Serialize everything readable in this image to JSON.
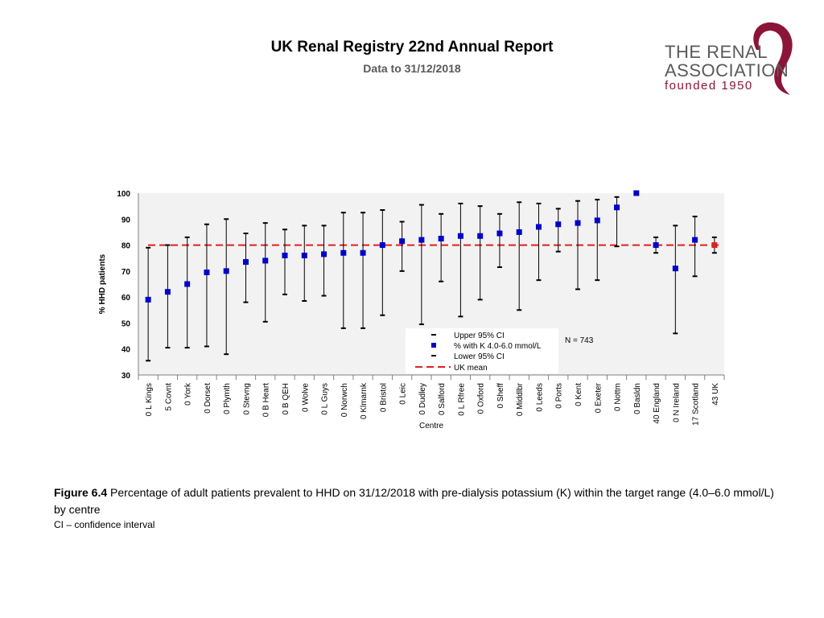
{
  "header": {
    "title": "UK Renal Registry 22nd Annual Report",
    "subtitle": "Data to 31/12/2018"
  },
  "logo": {
    "line1": "THE RENAL",
    "line2": "ASSOCIATION",
    "line3": "founded 1950",
    "color": "#8b1538"
  },
  "chart_data": {
    "type": "scatter",
    "xlabel": "Centre",
    "ylabel": "% HHD patients",
    "ylim": [
      30,
      100
    ],
    "yticks": [
      30,
      40,
      50,
      60,
      70,
      80,
      90,
      100
    ],
    "uk_mean": 80,
    "n_label": "N = 743",
    "legend": {
      "upper": "Upper 95% CI",
      "point": "% with K 4.0-6.0 mmol/L",
      "lower": "Lower 95% CI",
      "mean": "UK mean"
    },
    "colors": {
      "point": "#0000cc",
      "uk_point": "#e02020",
      "mean": "#e02020",
      "bg": "#f2f2f2"
    },
    "categories": [
      "0 L Kings",
      "5 Covnt",
      "0 York",
      "0 Dorset",
      "0 Plymth",
      "0 Stevng",
      "0 B Heart",
      "0 B QEH",
      "0 Wolve",
      "0 L Guys",
      "0 Norwch",
      "0 Klmarnk",
      "0 Bristol",
      "0 Leic",
      "0 Dudley",
      "0 Salford",
      "0 L Rfree",
      "0 Oxford",
      "0 Sheff",
      "0 Middlbr",
      "0 Leeds",
      "0 Ports",
      "0 Kent",
      "0 Exeter",
      "0 Nottm",
      "0 Basldn",
      "40 England",
      "0 N Ireland",
      "17 Scotland",
      "43 UK"
    ],
    "values": [
      59,
      62,
      65,
      69.5,
      70,
      73.5,
      74,
      76,
      76,
      76.5,
      77,
      77,
      80,
      81.5,
      82,
      82.5,
      83.5,
      83.5,
      84.5,
      85,
      87,
      88,
      88.5,
      89.5,
      94.5,
      100,
      80,
      71,
      82,
      80
    ],
    "upper": [
      79,
      80,
      83,
      88,
      90,
      84.5,
      88.5,
      86,
      87.5,
      87.5,
      92.5,
      92.5,
      93.5,
      89,
      95.5,
      92,
      96,
      95,
      92,
      96.5,
      96,
      94,
      97,
      97.5,
      98.5,
      100,
      83,
      87.5,
      91,
      83
    ],
    "lower": [
      35.5,
      40.5,
      40.5,
      41,
      38,
      58,
      50.5,
      61,
      58.5,
      60.5,
      48,
      48,
      53,
      70,
      49.5,
      66,
      52.5,
      59,
      71.5,
      55,
      66.5,
      77.5,
      63,
      66.5,
      79.5,
      100,
      77,
      46,
      68,
      77
    ]
  },
  "caption": {
    "label": "Figure 6.4",
    "text": " Percentage of adult patients prevalent to HHD on 31/12/2018 with pre-dialysis potassium (K) within the target range (4.0–6.0 mmol/L) by centre",
    "note": "CI – confidence interval"
  }
}
